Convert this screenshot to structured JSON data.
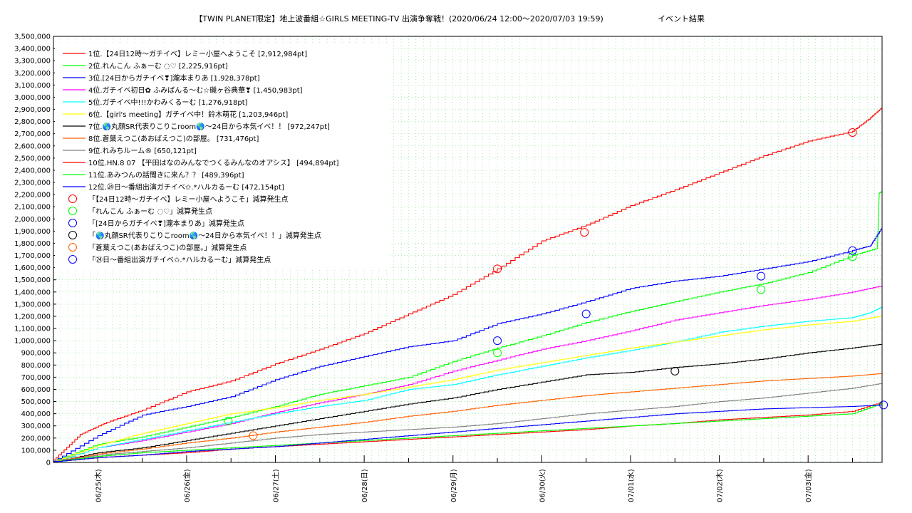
{
  "chart_data": {
    "type": "line",
    "title": "【TWIN PLANET限定】地上波番組☆GIRLS MEETING-TV 出演争奪戦！(2020/06/24 12:00〜2020/07/03 19:59)",
    "subtitle": "イベント結果",
    "xlabel": "",
    "ylabel": "",
    "xlim": [
      0,
      9.333
    ],
    "ylim": [
      0,
      3500000
    ],
    "grid": true,
    "legend_position": "top-left",
    "x_ticks": [
      {
        "x": 0.5,
        "label": "06/25(木)"
      },
      {
        "x": 1.5,
        "label": "06/26(金)"
      },
      {
        "x": 2.5,
        "label": "06/27(土)"
      },
      {
        "x": 3.5,
        "label": "06/28(日)"
      },
      {
        "x": 4.5,
        "label": "06/29(月)"
      },
      {
        "x": 5.5,
        "label": "06/30(火)"
      },
      {
        "x": 6.5,
        "label": "07/01(水)"
      },
      {
        "x": 7.5,
        "label": "07/02(木)"
      },
      {
        "x": 8.5,
        "label": "07/03(金)"
      }
    ],
    "y_ticks": [
      0,
      100000,
      200000,
      300000,
      400000,
      500000,
      600000,
      700000,
      800000,
      900000,
      1000000,
      1100000,
      1200000,
      1300000,
      1400000,
      1500000,
      1600000,
      1700000,
      1800000,
      1900000,
      2000000,
      2100000,
      2200000,
      2300000,
      2400000,
      2500000,
      2600000,
      2700000,
      2800000,
      2900000,
      3000000,
      3100000,
      3200000,
      3300000,
      3400000,
      3500000
    ],
    "y_tick_labels": [
      "0",
      "100,000",
      "200,000",
      "300,000",
      "400,000",
      "500,000",
      "600,000",
      "700,000",
      "800,000",
      "900,000",
      "1,000,000",
      "1,100,000",
      "1,200,000",
      "1,300,000",
      "1,400,000",
      "1,500,000",
      "1,600,000",
      "1,700,000",
      "1,800,000",
      "1,900,000",
      "2,000,000",
      "2,100,000",
      "2,200,000",
      "2,300,000",
      "2,400,000",
      "2,500,000",
      "2,600,000",
      "2,700,000",
      "2,800,000",
      "2,900,000",
      "3,000,000",
      "3,100,000",
      "3,200,000",
      "3,300,000",
      "3,400,000",
      "3,500,000"
    ],
    "x_units": "days since 2020/06/24 12:00",
    "series": [
      {
        "name": "1位.【24日12時〜ガチイベ】レミー小屋へようこそ [2,912,984pt]",
        "color": "#ff0000",
        "x": [
          0,
          0.3,
          0.6,
          1.0,
          1.5,
          2.0,
          2.5,
          3.0,
          3.5,
          4.0,
          4.5,
          5.0,
          5.5,
          6.0,
          6.5,
          7.0,
          7.5,
          8.0,
          8.5,
          9.0,
          9.2,
          9.33
        ],
        "y": [
          20000,
          230000,
          330000,
          430000,
          580000,
          670000,
          810000,
          930000,
          1060000,
          1220000,
          1380000,
          1590000,
          1820000,
          1950000,
          2110000,
          2240000,
          2380000,
          2520000,
          2640000,
          2720000,
          2830000,
          2913000
        ]
      },
      {
        "name": "2位.れんこん ふぁーむ ◌♡ [2,225,916pt]",
        "color": "#00ff00",
        "x": [
          0,
          0.5,
          1.0,
          1.5,
          2.0,
          2.5,
          3.0,
          3.5,
          4.0,
          4.5,
          5.0,
          5.5,
          6.0,
          6.5,
          7.0,
          7.5,
          8.0,
          8.5,
          9.0,
          9.28,
          9.3,
          9.33
        ],
        "y": [
          10000,
          150000,
          210000,
          290000,
          370000,
          460000,
          560000,
          630000,
          700000,
          830000,
          940000,
          1040000,
          1150000,
          1240000,
          1320000,
          1400000,
          1470000,
          1560000,
          1700000,
          1760000,
          2210000,
          2226000
        ]
      },
      {
        "name": "3位.[24日からガチイベ❣]瀧本まりあ [1,928,378pt]",
        "color": "#0000ff",
        "x": [
          0,
          0.5,
          1.0,
          1.5,
          2.0,
          2.5,
          3.0,
          3.5,
          4.0,
          4.5,
          5.0,
          5.5,
          6.0,
          6.5,
          7.0,
          7.5,
          8.0,
          8.5,
          9.0,
          9.2,
          9.33
        ],
        "y": [
          10000,
          220000,
          390000,
          460000,
          540000,
          680000,
          790000,
          870000,
          950000,
          1000000,
          1140000,
          1220000,
          1320000,
          1430000,
          1490000,
          1530000,
          1590000,
          1650000,
          1740000,
          1780000,
          1928000
        ]
      },
      {
        "name": "4位.ガチイベ初日✿ ふみばんる〜む☆磯ヶ谷典華❣ [1,450,983pt]",
        "color": "#ff00ff",
        "x": [
          0,
          0.5,
          1.0,
          1.5,
          2.0,
          2.5,
          3.0,
          3.5,
          4.0,
          4.5,
          5.0,
          5.5,
          6.0,
          6.5,
          7.0,
          7.5,
          8.0,
          8.5,
          9.0,
          9.33
        ],
        "y": [
          5000,
          120000,
          180000,
          250000,
          320000,
          410000,
          490000,
          560000,
          640000,
          750000,
          840000,
          930000,
          1000000,
          1080000,
          1170000,
          1230000,
          1290000,
          1340000,
          1400000,
          1451000
        ]
      },
      {
        "name": "5位.ガチイベ中!!!かわみくるーむ [1,276,918pt]",
        "color": "#00ffff",
        "x": [
          0,
          0.5,
          1.0,
          1.5,
          2.0,
          2.5,
          3.0,
          3.5,
          4.0,
          4.5,
          5.0,
          5.5,
          6.0,
          6.5,
          7.0,
          7.5,
          8.0,
          8.5,
          9.0,
          9.2,
          9.33
        ],
        "y": [
          5000,
          120000,
          190000,
          260000,
          330000,
          400000,
          460000,
          510000,
          600000,
          640000,
          720000,
          790000,
          860000,
          920000,
          990000,
          1070000,
          1120000,
          1160000,
          1190000,
          1230000,
          1277000
        ]
      },
      {
        "name": "6位.【girl's meeting】ガチイベ中！鈴木萌花 [1,203,946pt]",
        "color": "#ffff00",
        "x": [
          0,
          0.5,
          1.0,
          1.5,
          2.0,
          2.5,
          3.0,
          3.5,
          4.0,
          4.5,
          5.0,
          5.5,
          6.0,
          6.5,
          7.0,
          7.5,
          8.0,
          8.5,
          9.0,
          9.33
        ],
        "y": [
          5000,
          140000,
          240000,
          320000,
          400000,
          450000,
          510000,
          560000,
          620000,
          680000,
          760000,
          820000,
          880000,
          940000,
          990000,
          1040000,
          1090000,
          1130000,
          1160000,
          1204000
        ]
      },
      {
        "name": "7位.🌎丸顔SR代表りこりこroom🌎〜24日から本気イベ！！ [972,247pt]",
        "color": "#000000",
        "x": [
          0,
          0.5,
          1.0,
          1.5,
          2.0,
          2.5,
          3.0,
          3.5,
          4.0,
          4.5,
          5.0,
          5.5,
          6.0,
          6.5,
          7.0,
          7.5,
          8.0,
          8.5,
          9.0,
          9.33
        ],
        "y": [
          5000,
          80000,
          120000,
          180000,
          240000,
          300000,
          360000,
          420000,
          480000,
          530000,
          600000,
          660000,
          720000,
          740000,
          780000,
          810000,
          850000,
          900000,
          940000,
          972000
        ]
      },
      {
        "name": "8位.蒼葉えつこ(あおばえつこ)の部屋。 [731,476pt]",
        "color": "#ff6000",
        "x": [
          0,
          0.5,
          1.0,
          1.5,
          2.0,
          2.5,
          3.0,
          3.5,
          4.0,
          4.5,
          5.0,
          5.5,
          6.0,
          6.5,
          7.0,
          7.5,
          8.0,
          8.5,
          9.0,
          9.33
        ],
        "y": [
          5000,
          70000,
          110000,
          160000,
          200000,
          250000,
          290000,
          330000,
          380000,
          420000,
          470000,
          510000,
          550000,
          580000,
          610000,
          640000,
          670000,
          690000,
          710000,
          731000
        ]
      },
      {
        "name": "9位.れみちルーム® [650,121pt]",
        "color": "#808080",
        "x": [
          0,
          0.5,
          1.0,
          1.5,
          2.0,
          2.5,
          3.0,
          3.5,
          4.0,
          4.5,
          5.0,
          5.5,
          6.0,
          6.5,
          7.0,
          7.5,
          8.0,
          8.5,
          9.0,
          9.33
        ],
        "y": [
          5000,
          60000,
          90000,
          120000,
          160000,
          200000,
          230000,
          250000,
          270000,
          290000,
          320000,
          360000,
          400000,
          430000,
          460000,
          500000,
          530000,
          570000,
          610000,
          650000
        ]
      },
      {
        "name": "10位.HN.8 07 【平田はなのみんなでつくるみんなのオアシス】 [494,894pt]",
        "color": "#ff0000",
        "x": [
          0,
          0.5,
          1.0,
          1.5,
          2.0,
          2.5,
          3.0,
          3.5,
          4.0,
          4.5,
          5.0,
          5.5,
          6.0,
          6.5,
          7.0,
          7.5,
          8.0,
          8.5,
          9.0,
          9.33
        ],
        "y": [
          5000,
          40000,
          60000,
          80000,
          110000,
          130000,
          150000,
          170000,
          190000,
          210000,
          230000,
          250000,
          270000,
          300000,
          320000,
          350000,
          370000,
          390000,
          420000,
          495000
        ]
      },
      {
        "name": "11位.あみつんの話聞きに来ん？？ [489,396pt]",
        "color": "#00ff00",
        "x": [
          0,
          0.5,
          1.0,
          1.5,
          2.0,
          2.5,
          3.0,
          3.5,
          4.0,
          4.5,
          5.0,
          5.5,
          6.0,
          6.5,
          7.0,
          7.5,
          8.0,
          8.5,
          9.0,
          9.33
        ],
        "y": [
          5000,
          50000,
          80000,
          100000,
          120000,
          140000,
          160000,
          180000,
          200000,
          220000,
          240000,
          260000,
          280000,
          300000,
          320000,
          340000,
          360000,
          380000,
          400000,
          489000
        ]
      },
      {
        "name": "12位.㉔日〜番組出演ガチイベ✩.*ハルカるーむ [472,154pt]",
        "color": "#0000ff",
        "x": [
          0,
          0.5,
          1.0,
          1.5,
          2.0,
          2.5,
          3.0,
          3.5,
          4.0,
          4.5,
          5.0,
          5.5,
          6.0,
          6.5,
          7.0,
          7.5,
          8.0,
          8.5,
          9.0,
          9.33
        ],
        "y": [
          5000,
          40000,
          60000,
          90000,
          110000,
          130000,
          160000,
          190000,
          220000,
          250000,
          280000,
          310000,
          340000,
          370000,
          400000,
          420000,
          440000,
          450000,
          460000,
          472000
        ]
      }
    ],
    "markers": [
      {
        "name": "「【24日12時〜ガチイベ】レミー小屋へようこそ」減算発生点",
        "color": "#ff0000",
        "points": [
          {
            "x": 5.0,
            "y": 1590000
          },
          {
            "x": 5.98,
            "y": 1890000
          },
          {
            "x": 9.0,
            "y": 2710000
          }
        ]
      },
      {
        "name": "「れんこん ふぁーむ ◌♡」減算発生点",
        "color": "#00ff00",
        "points": [
          {
            "x": 1.97,
            "y": 340000
          },
          {
            "x": 5.0,
            "y": 900000
          },
          {
            "x": 7.97,
            "y": 1420000
          },
          {
            "x": 9.0,
            "y": 1690000
          }
        ]
      },
      {
        "name": "「[24日からガチイベ❣]瀧本まりあ」減算発生点",
        "color": "#0000ff",
        "points": [
          {
            "x": 5.0,
            "y": 1000000
          },
          {
            "x": 6.0,
            "y": 1220000
          },
          {
            "x": 7.97,
            "y": 1530000
          },
          {
            "x": 9.0,
            "y": 1740000
          }
        ]
      },
      {
        "name": "「🌎丸顔SR代表りこりこroom🌎〜24日から本気イベ！！」減算発生点",
        "color": "#000000",
        "points": [
          {
            "x": 7.0,
            "y": 750000
          }
        ]
      },
      {
        "name": "「蒼葉えつこ(あおばえつこ)の部屋。」減算発生点",
        "color": "#ff6000",
        "points": [
          {
            "x": 2.25,
            "y": 220000
          }
        ]
      },
      {
        "name": "「㉔日〜番組出演ガチイベ✩.*ハルカるーむ」減算発生点",
        "color": "#0000ff",
        "points": [
          {
            "x": 9.35,
            "y": 472000
          }
        ]
      }
    ]
  }
}
